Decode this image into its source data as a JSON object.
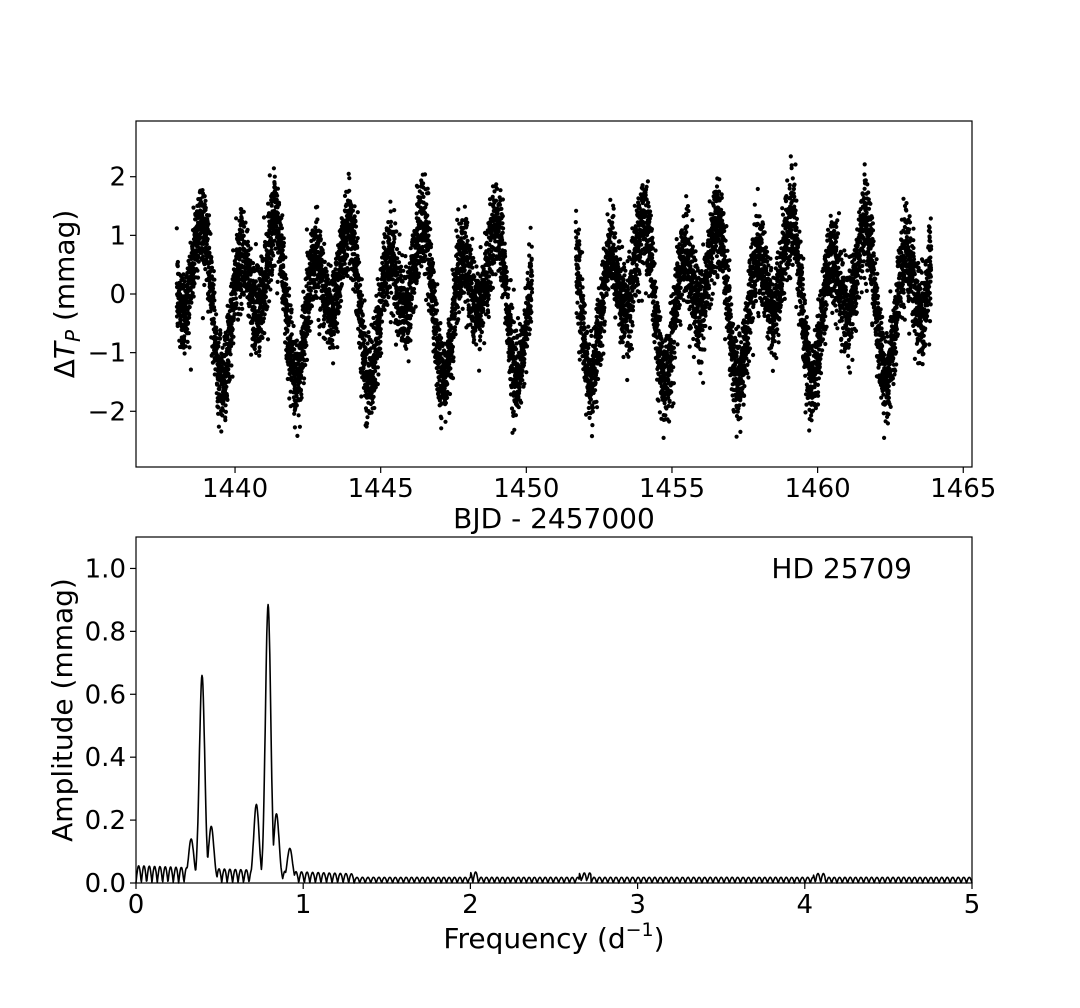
{
  "chart_data": [
    {
      "type": "scatter",
      "xlabel": "BJD - 2457000",
      "ylabel_prefix": "Δ",
      "ylabel_var": "T",
      "ylabel_sub": "P",
      "ylabel_unit": " (mmag)",
      "xlim": [
        1436.6,
        1465.3
      ],
      "ylim": [
        2.95,
        -2.95
      ],
      "y_inverted": true,
      "xticks": [
        1440,
        1445,
        1450,
        1455,
        1460,
        1465
      ],
      "xtick_labels": [
        "1440",
        "1445",
        "1450",
        "1455",
        "1460",
        "1465"
      ],
      "yticks": [
        -2,
        -1,
        0,
        1,
        2
      ],
      "ytick_labels": [
        "−2",
        "−1",
        "0",
        "1",
        "2"
      ],
      "grid": false,
      "marker_color": "#000000",
      "segments": [
        [
          1438.0,
          1450.2
        ],
        [
          1451.7,
          1463.9
        ]
      ],
      "signal": {
        "components": [
          {
            "frequency": 0.79,
            "amplitude": 0.88
          },
          {
            "frequency": 0.395,
            "amplitude": 0.66
          }
        ],
        "scatter_rms": 0.38
      }
    },
    {
      "type": "line",
      "xlabel_prefix": "Frequency (d",
      "xlabel_sup": "−1",
      "xlabel_suffix": ")",
      "ylabel": "Amplitude (mmag)",
      "xlim": [
        0,
        5
      ],
      "ylim": [
        0,
        1.1
      ],
      "xticks": [
        0,
        1,
        2,
        3,
        4,
        5
      ],
      "xtick_labels": [
        "0",
        "1",
        "2",
        "3",
        "4",
        "5"
      ],
      "yticks": [
        0,
        0.2,
        0.4,
        0.6,
        0.8,
        1.0
      ],
      "ytick_labels": [
        "0.0",
        "0.2",
        "0.4",
        "0.6",
        "0.8",
        "1.0"
      ],
      "annotation": "HD 25709",
      "grid": false,
      "line_color": "#000000",
      "peaks": [
        {
          "frequency": 0.395,
          "amplitude": 0.66
        },
        {
          "frequency": 0.79,
          "amplitude": 0.885
        },
        {
          "frequency": 0.33,
          "amplitude": 0.14
        },
        {
          "frequency": 0.45,
          "amplitude": 0.18
        },
        {
          "frequency": 0.72,
          "amplitude": 0.25
        },
        {
          "frequency": 0.84,
          "amplitude": 0.22
        },
        {
          "frequency": 0.92,
          "amplitude": 0.11
        }
      ]
    }
  ]
}
